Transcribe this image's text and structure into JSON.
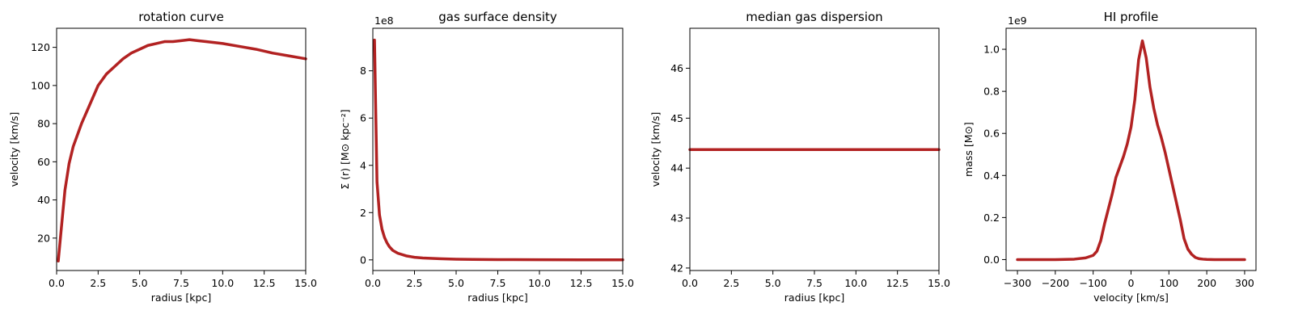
{
  "colors": {
    "line": "#b22222"
  },
  "chart_data": [
    {
      "type": "line",
      "title": "rotation curve",
      "xlabel": "radius [kpc]",
      "ylabel": "velocity [km/s]",
      "xlim": [
        0,
        15
      ],
      "ylim": [
        3,
        130
      ],
      "xticks": [
        0.0,
        2.5,
        5.0,
        7.5,
        10.0,
        12.5,
        15.0
      ],
      "xticklabels": [
        "0.0",
        "2.5",
        "5.0",
        "7.5",
        "10.0",
        "12.5",
        "15.0"
      ],
      "yticks": [
        20,
        40,
        60,
        80,
        100,
        120
      ],
      "yticklabels": [
        "20",
        "40",
        "60",
        "80",
        "100",
        "120"
      ],
      "offset_text": "",
      "series": [
        {
          "x": [
            0.1,
            0.25,
            0.5,
            0.75,
            1.0,
            1.5,
            2.0,
            2.5,
            3.0,
            3.5,
            4.0,
            4.5,
            5.0,
            5.5,
            6.0,
            6.5,
            7.0,
            7.5,
            8.0,
            8.5,
            9.0,
            10.0,
            11.0,
            12.0,
            13.0,
            14.0,
            15.0
          ],
          "y": [
            8,
            22,
            45,
            59,
            68,
            80,
            90,
            100,
            106,
            110,
            114,
            117,
            119,
            121,
            122,
            123,
            123,
            123.5,
            124,
            123.5,
            123,
            122,
            120.5,
            119,
            117,
            115.5,
            114
          ]
        }
      ]
    },
    {
      "type": "line",
      "title": "gas surface density",
      "xlabel": "radius [kpc]",
      "ylabel": "Σ (r) [M⊙ kpc⁻²]",
      "xlim": [
        0,
        15
      ],
      "ylim": [
        -0.45,
        9.8
      ],
      "xticks": [
        0.0,
        2.5,
        5.0,
        7.5,
        10.0,
        12.5,
        15.0
      ],
      "xticklabels": [
        "0.0",
        "2.5",
        "5.0",
        "7.5",
        "10.0",
        "12.5",
        "15.0"
      ],
      "yticks": [
        0,
        2,
        4,
        6,
        8
      ],
      "yticklabels": [
        "0",
        "2",
        "4",
        "6",
        "8"
      ],
      "offset_text": "1e8",
      "series": [
        {
          "x": [
            0.1,
            0.25,
            0.4,
            0.55,
            0.7,
            0.85,
            1.0,
            1.2,
            1.5,
            2.0,
            2.5,
            3.0,
            4.0,
            5.0,
            6.0,
            7.5,
            10.0,
            12.5,
            15.0
          ],
          "y": [
            9.3,
            3.3,
            1.9,
            1.3,
            0.95,
            0.72,
            0.55,
            0.4,
            0.28,
            0.17,
            0.11,
            0.08,
            0.05,
            0.03,
            0.02,
            0.012,
            0.006,
            0.003,
            0.002
          ]
        }
      ]
    },
    {
      "type": "line",
      "title": "median gas dispersion",
      "xlabel": "radius [kpc]",
      "ylabel": "velocity [km/s]",
      "xlim": [
        0,
        15
      ],
      "ylim": [
        41.95,
        46.8
      ],
      "xticks": [
        0.0,
        2.5,
        5.0,
        7.5,
        10.0,
        12.5,
        15.0
      ],
      "xticklabels": [
        "0.0",
        "2.5",
        "5.0",
        "7.5",
        "10.0",
        "12.5",
        "15.0"
      ],
      "yticks": [
        42,
        43,
        44,
        45,
        46
      ],
      "yticklabels": [
        "42",
        "43",
        "44",
        "45",
        "46"
      ],
      "offset_text": "",
      "series": [
        {
          "x": [
            0,
            15
          ],
          "y": [
            44.37,
            44.37
          ]
        }
      ]
    },
    {
      "type": "line",
      "title": "HI profile",
      "xlabel": "velocity [km/s]",
      "ylabel": "mass [M⊙]",
      "xlim": [
        -330,
        330
      ],
      "ylim": [
        -0.052,
        1.1
      ],
      "xticks": [
        -300,
        -200,
        -100,
        0,
        100,
        200,
        300
      ],
      "xticklabels": [
        "−300",
        "−200",
        "−100",
        "0",
        "100",
        "200",
        "300"
      ],
      "yticks": [
        0.0,
        0.2,
        0.4,
        0.6,
        0.8,
        1.0
      ],
      "yticklabels": [
        "0.0",
        "0.2",
        "0.4",
        "0.6",
        "0.8",
        "1.0"
      ],
      "offset_text": "1e9",
      "series": [
        {
          "x": [
            -300,
            -250,
            -200,
            -150,
            -120,
            -100,
            -90,
            -80,
            -70,
            -60,
            -50,
            -40,
            -30,
            -20,
            -10,
            0,
            10,
            20,
            30,
            40,
            50,
            60,
            70,
            80,
            90,
            100,
            110,
            120,
            130,
            140,
            150,
            160,
            170,
            180,
            190,
            200,
            220,
            250,
            300
          ],
          "y": [
            0,
            0,
            0,
            0.002,
            0.008,
            0.02,
            0.04,
            0.09,
            0.17,
            0.24,
            0.31,
            0.39,
            0.44,
            0.49,
            0.55,
            0.63,
            0.76,
            0.95,
            1.04,
            0.96,
            0.82,
            0.72,
            0.64,
            0.58,
            0.51,
            0.43,
            0.35,
            0.27,
            0.19,
            0.1,
            0.05,
            0.025,
            0.01,
            0.004,
            0.002,
            0.001,
            0,
            0,
            0
          ]
        }
      ]
    }
  ]
}
